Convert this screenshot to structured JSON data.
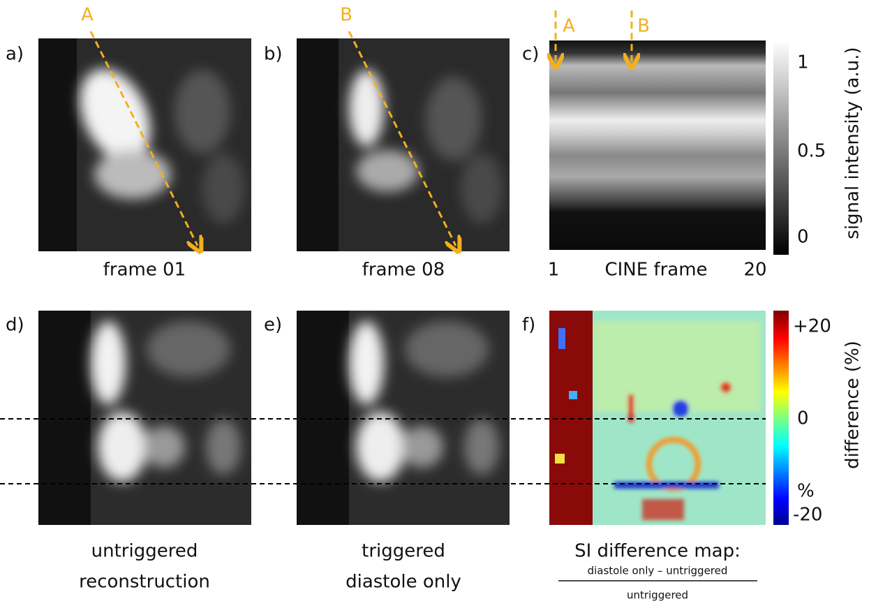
{
  "panels": [
    {
      "label": "a)",
      "caption": "frame 01",
      "arrow": "A"
    },
    {
      "label": "b)",
      "caption": "frame 08",
      "arrow": "B"
    },
    {
      "label": "c)",
      "axis_start": "1",
      "axis_label": "CINE frame",
      "axis_end": "20",
      "markers": [
        "A",
        "B"
      ]
    },
    {
      "label": "d)",
      "caption_lines": [
        "untriggered",
        "reconstruction"
      ]
    },
    {
      "label": "e)",
      "caption_lines": [
        "triggered",
        "diastole only"
      ]
    },
    {
      "label": "f)",
      "caption": "SI difference map:",
      "numerator": "diastole only – untriggered",
      "denominator": "untriggered"
    }
  ],
  "colorbars": [
    {
      "ticks": [
        "1",
        "0.5",
        "0"
      ],
      "title": "signal intensity (a.u.)"
    },
    {
      "ticks": [
        "+20",
        "0",
        "%",
        "-20"
      ],
      "title": "difference (%)"
    }
  ]
}
